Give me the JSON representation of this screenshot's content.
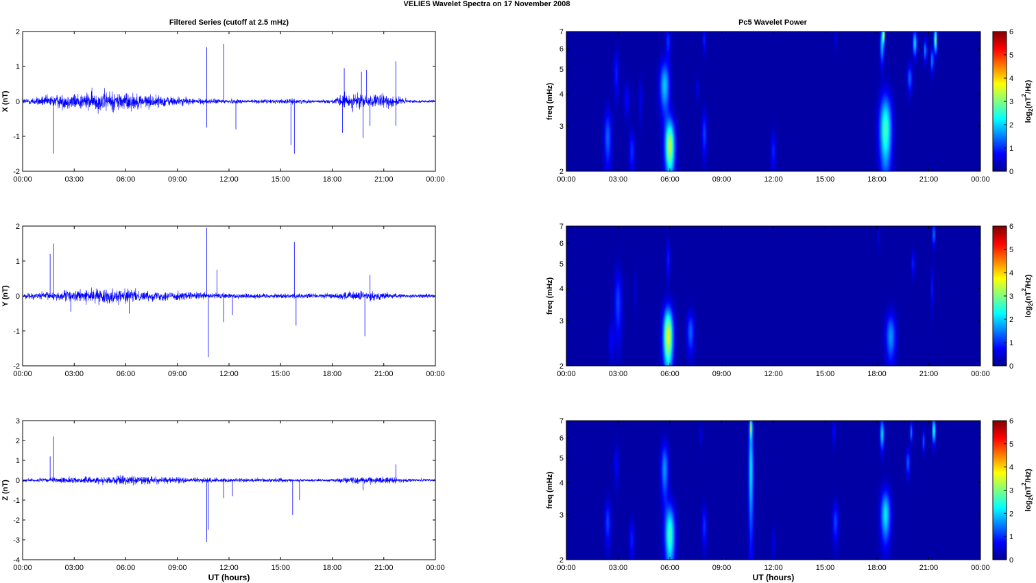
{
  "title": "VELIES Wavelet Spectra on 17 November  2008",
  "left_title": "Filtered Series (cutoff at 2.5 mHz)",
  "right_title": "Pc5 Wavelet Power",
  "xlabel": "UT (hours)",
  "freq_label": "freq (mHz)",
  "colorbar_label_parts": [
    "log",
    "2",
    "(nT",
    "2",
    "/Hz)"
  ],
  "colors": {
    "trace": "#0000ff",
    "background": "#00008f"
  },
  "chart_data": [
    {
      "type": "line",
      "name": "X series",
      "ylabel": "X (nT)",
      "ylim": [
        -2,
        2
      ],
      "yticks": [
        "2",
        "1",
        "0",
        "-1",
        "-2"
      ],
      "xticks": [
        "00:00",
        "03:00",
        "06:00",
        "09:00",
        "12:00",
        "15:00",
        "18:00",
        "21:00",
        "00:00"
      ],
      "xlim_hours": [
        0,
        24
      ],
      "noise_envelope": [
        [
          0,
          0.12
        ],
        [
          1,
          0.2
        ],
        [
          2,
          0.3
        ],
        [
          3,
          0.35
        ],
        [
          4,
          0.4
        ],
        [
          5,
          0.45
        ],
        [
          6,
          0.4
        ],
        [
          7,
          0.3
        ],
        [
          8,
          0.25
        ],
        [
          9,
          0.2
        ],
        [
          10,
          0.12
        ],
        [
          12,
          0.1
        ],
        [
          14,
          0.08
        ],
        [
          15,
          0.1
        ],
        [
          16,
          0.1
        ],
        [
          17,
          0.06
        ],
        [
          18,
          0.08
        ],
        [
          18.6,
          0.3
        ],
        [
          19.5,
          0.35
        ],
        [
          20,
          0.25
        ],
        [
          21,
          0.3
        ],
        [
          22,
          0.2
        ],
        [
          22.5,
          0.06
        ],
        [
          24,
          0.05
        ]
      ],
      "spikes": [
        [
          1.8,
          -1.5
        ],
        [
          10.7,
          1.55
        ],
        [
          10.7,
          -0.75
        ],
        [
          11.7,
          1.65
        ],
        [
          12.4,
          -0.8
        ],
        [
          15.6,
          -1.25
        ],
        [
          15.8,
          -1.5
        ],
        [
          18.7,
          0.95
        ],
        [
          18.6,
          -0.9
        ],
        [
          19.7,
          0.85
        ],
        [
          20,
          0.9
        ],
        [
          19.8,
          -1.05
        ],
        [
          20.2,
          -0.7
        ],
        [
          21.7,
          1.15
        ],
        [
          21.7,
          -0.7
        ]
      ]
    },
    {
      "type": "line",
      "name": "Y series",
      "ylabel": "Y (nT)",
      "ylim": [
        -2,
        2
      ],
      "yticks": [
        "2",
        "1",
        "0",
        "-1",
        "-2"
      ],
      "xticks": [
        "00:00",
        "03:00",
        "06:00",
        "09:00",
        "12:00",
        "15:00",
        "18:00",
        "21:00",
        "00:00"
      ],
      "xlim_hours": [
        0,
        24
      ],
      "noise_envelope": [
        [
          0,
          0.1
        ],
        [
          2,
          0.2
        ],
        [
          3,
          0.25
        ],
        [
          5,
          0.3
        ],
        [
          6,
          0.3
        ],
        [
          7,
          0.2
        ],
        [
          9,
          0.2
        ],
        [
          10,
          0.15
        ],
        [
          12,
          0.12
        ],
        [
          15,
          0.1
        ],
        [
          16,
          0.12
        ],
        [
          18,
          0.1
        ],
        [
          19,
          0.2
        ],
        [
          20,
          0.2
        ],
        [
          21,
          0.15
        ],
        [
          22,
          0.08
        ],
        [
          24,
          0.08
        ]
      ],
      "spikes": [
        [
          1.6,
          1.2
        ],
        [
          1.8,
          1.5
        ],
        [
          2.8,
          -0.45
        ],
        [
          6.2,
          -0.5
        ],
        [
          10.7,
          1.95
        ],
        [
          10.8,
          -1.75
        ],
        [
          11.3,
          0.75
        ],
        [
          11.7,
          -0.75
        ],
        [
          12.2,
          -0.55
        ],
        [
          15.8,
          1.55
        ],
        [
          15.9,
          -0.85
        ],
        [
          19.9,
          -1.15
        ],
        [
          20.2,
          0.6
        ]
      ]
    },
    {
      "type": "line",
      "name": "Z series",
      "ylabel": "Z (nT)",
      "ylim": [
        -4,
        3
      ],
      "yticks": [
        "3",
        "2",
        "1",
        "0",
        "-1",
        "-2",
        "-3",
        "-4"
      ],
      "xticks": [
        "00:00",
        "03:00",
        "06:00",
        "09:00",
        "12:00",
        "15:00",
        "18:00",
        "21:00",
        "00:00"
      ],
      "xlim_hours": [
        0,
        24
      ],
      "noise_envelope": [
        [
          0,
          0.1
        ],
        [
          2,
          0.2
        ],
        [
          4,
          0.25
        ],
        [
          6,
          0.35
        ],
        [
          8,
          0.25
        ],
        [
          10,
          0.2
        ],
        [
          12,
          0.15
        ],
        [
          15,
          0.15
        ],
        [
          16,
          0.1
        ],
        [
          18,
          0.1
        ],
        [
          19,
          0.25
        ],
        [
          20,
          0.25
        ],
        [
          21.5,
          0.25
        ],
        [
          22.5,
          0.1
        ],
        [
          24,
          0.1
        ]
      ],
      "spikes": [
        [
          1.6,
          1.2
        ],
        [
          1.8,
          2.2
        ],
        [
          10.7,
          -3.1
        ],
        [
          10.8,
          -2.5
        ],
        [
          11.7,
          -0.9
        ],
        [
          12.2,
          -0.8
        ],
        [
          15.7,
          -1.75
        ],
        [
          16.1,
          -1
        ],
        [
          19.8,
          -0.5
        ],
        [
          21.7,
          0.8
        ]
      ]
    },
    {
      "type": "heatmap",
      "name": "X wavelet power",
      "ylabel": "freq (mHz)",
      "ylim": [
        2,
        7
      ],
      "ytick_values": [
        2,
        3,
        4,
        5,
        6,
        7
      ],
      "yticks": [
        "2",
        "3",
        "4",
        "5",
        "6",
        "7"
      ],
      "xticks": [
        "00:00",
        "03:00",
        "06:00",
        "09:00",
        "12:00",
        "15:00",
        "18:00",
        "21:00",
        "00:00"
      ],
      "xlim_hours": [
        0,
        24
      ],
      "colorbar": {
        "range": [
          0,
          6
        ],
        "ticks": [
          "6",
          "5",
          "4",
          "3",
          "2",
          "1",
          "0"
        ]
      },
      "blobs": [
        [
          2.4,
          2.7,
          0.15,
          0.5,
          1.2
        ],
        [
          2.9,
          4.8,
          0.1,
          0.7,
          0.8
        ],
        [
          3.5,
          3.8,
          0.12,
          0.4,
          0.6
        ],
        [
          3.8,
          2.4,
          0.12,
          0.3,
          0.9
        ],
        [
          4.3,
          3.8,
          0.08,
          0.5,
          0.5
        ],
        [
          5.7,
          4.3,
          0.2,
          0.7,
          1.8
        ],
        [
          6.0,
          2.5,
          0.2,
          0.45,
          3.2
        ],
        [
          5.9,
          6.4,
          0.1,
          0.6,
          0.9
        ],
        [
          7.6,
          4.2,
          0.08,
          0.3,
          0.4
        ],
        [
          8.0,
          2.8,
          0.1,
          0.4,
          1.0
        ],
        [
          8.0,
          6.5,
          0.06,
          0.5,
          0.8
        ],
        [
          12.0,
          2.4,
          0.1,
          0.3,
          0.8
        ],
        [
          15.6,
          6.5,
          0.05,
          0.4,
          0.5
        ],
        [
          18.5,
          2.9,
          0.25,
          0.7,
          2.5
        ],
        [
          18.3,
          6.2,
          0.08,
          0.7,
          1.8
        ],
        [
          18.4,
          6.8,
          0.05,
          0.3,
          3.0
        ],
        [
          19.9,
          4.6,
          0.1,
          0.4,
          1.2
        ],
        [
          20.2,
          6.3,
          0.08,
          0.5,
          2.0
        ],
        [
          20.8,
          5.9,
          0.06,
          0.4,
          1.5
        ],
        [
          21.4,
          6.5,
          0.06,
          0.5,
          3.0
        ],
        [
          21.2,
          5.4,
          0.06,
          0.4,
          1.5
        ]
      ]
    },
    {
      "type": "heatmap",
      "name": "Y wavelet power",
      "ylabel": "freq (mHz)",
      "ylim": [
        2,
        7
      ],
      "ytick_values": [
        2,
        3,
        4,
        5,
        6,
        7
      ],
      "yticks": [
        "2",
        "3",
        "4",
        "5",
        "6",
        "7"
      ],
      "xticks": [
        "00:00",
        "03:00",
        "06:00",
        "09:00",
        "12:00",
        "15:00",
        "18:00",
        "21:00",
        "00:00"
      ],
      "xlim_hours": [
        0,
        24
      ],
      "colorbar": {
        "range": [
          0,
          6
        ],
        "ticks": [
          "6",
          "5",
          "4",
          "3",
          "2",
          "1",
          "0"
        ]
      },
      "blobs": [
        [
          2.6,
          2.5,
          0.1,
          0.3,
          0.6
        ],
        [
          3.0,
          3.5,
          0.15,
          0.8,
          1.0
        ],
        [
          5.9,
          2.6,
          0.2,
          0.5,
          3.5
        ],
        [
          5.9,
          5.2,
          0.08,
          0.6,
          0.8
        ],
        [
          7.2,
          2.7,
          0.15,
          0.35,
          1.2
        ],
        [
          4.0,
          3.9,
          0.06,
          0.5,
          0.4
        ],
        [
          18.8,
          2.6,
          0.2,
          0.4,
          1.5
        ],
        [
          20.1,
          5.0,
          0.06,
          0.4,
          0.9
        ],
        [
          21.3,
          6.5,
          0.05,
          0.5,
          1.5
        ],
        [
          21.2,
          4.0,
          0.05,
          0.5,
          0.8
        ],
        [
          18.1,
          6.3,
          0.05,
          0.4,
          0.4
        ]
      ]
    },
    {
      "type": "heatmap",
      "name": "Z wavelet power",
      "ylabel": "freq (mHz)",
      "ylim": [
        2,
        7
      ],
      "ytick_values": [
        2,
        3,
        4,
        5,
        6,
        7
      ],
      "yticks": [
        "2",
        "3",
        "4",
        "5",
        "6",
        "7"
      ],
      "xticks": [
        "00:00",
        "03:00",
        "06:00",
        "09:00",
        "12:00",
        "15:00",
        "18:00",
        "21:00",
        "00:00"
      ],
      "xlim_hours": [
        0,
        24
      ],
      "colorbar": {
        "range": [
          0,
          6
        ],
        "ticks": [
          "6",
          "5",
          "4",
          "3",
          "2",
          "1",
          "0"
        ]
      },
      "blobs": [
        [
          2.4,
          2.8,
          0.12,
          0.4,
          1.0
        ],
        [
          2.9,
          4.7,
          0.1,
          0.6,
          0.6
        ],
        [
          3.8,
          2.4,
          0.1,
          0.3,
          0.8
        ],
        [
          5.7,
          4.5,
          0.15,
          0.8,
          1.5
        ],
        [
          6.0,
          2.5,
          0.2,
          0.5,
          2.5
        ],
        [
          8.0,
          2.7,
          0.1,
          0.35,
          0.9
        ],
        [
          7.8,
          6.2,
          0.05,
          0.4,
          0.5
        ],
        [
          10.7,
          4.5,
          0.1,
          1.6,
          2.0
        ],
        [
          10.7,
          6.6,
          0.05,
          0.4,
          2.5
        ],
        [
          12.0,
          2.3,
          0.06,
          0.25,
          0.5
        ],
        [
          15.6,
          2.8,
          0.12,
          0.35,
          1.0
        ],
        [
          15.5,
          6.3,
          0.05,
          0.5,
          0.8
        ],
        [
          18.5,
          3.0,
          0.2,
          0.5,
          2.0
        ],
        [
          18.3,
          6.2,
          0.08,
          0.6,
          2.0
        ],
        [
          19.8,
          4.8,
          0.08,
          0.4,
          1.2
        ],
        [
          20.0,
          6.3,
          0.05,
          0.4,
          1.5
        ],
        [
          20.7,
          5.8,
          0.05,
          0.4,
          1.2
        ],
        [
          21.3,
          6.4,
          0.06,
          0.5,
          2.5
        ]
      ]
    }
  ]
}
